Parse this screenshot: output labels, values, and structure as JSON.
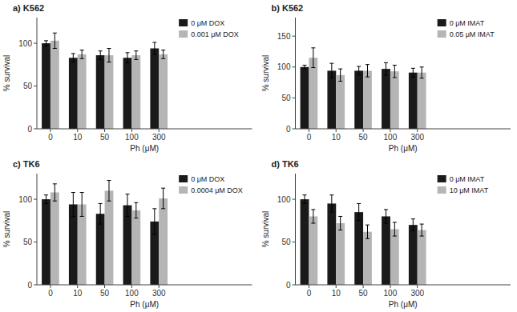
{
  "chart_data": [
    {
      "type": "bar",
      "title": "a) K562",
      "xlabel": "Ph (μM)",
      "ylabel": "% survival",
      "categories": [
        "0",
        "10",
        "50",
        "100",
        "300"
      ],
      "series": [
        {
          "name": "0 μM DOX",
          "color": "#1a1a1a",
          "values": [
            100,
            83,
            86,
            83,
            94
          ],
          "errors": [
            3,
            5,
            5,
            6,
            7
          ]
        },
        {
          "name": "0.001 μM DOX",
          "color": "#b5b5b5",
          "values": [
            103,
            87,
            86,
            86,
            87
          ],
          "errors": [
            9,
            5,
            8,
            5,
            5
          ]
        }
      ],
      "ylim": [
        0,
        130
      ],
      "yticks": [
        0,
        50,
        100
      ],
      "grid": false,
      "legend": "upper right"
    },
    {
      "type": "bar",
      "title": "b) K562",
      "xlabel": "Ph (μM)",
      "ylabel": "% survival",
      "categories": [
        "0",
        "10",
        "50",
        "100",
        "300"
      ],
      "series": [
        {
          "name": "0 μM IMAT",
          "color": "#1a1a1a",
          "values": [
            100,
            94,
            94,
            97,
            91
          ],
          "errors": [
            3,
            12,
            7,
            10,
            7
          ]
        },
        {
          "name": "0.05 μM IMAT",
          "color": "#b5b5b5",
          "values": [
            115,
            87,
            94,
            93,
            91
          ],
          "errors": [
            16,
            10,
            10,
            10,
            9
          ]
        }
      ],
      "ylim": [
        0,
        180
      ],
      "yticks": [
        0,
        50,
        100,
        150
      ],
      "grid": false,
      "legend": "upper right"
    },
    {
      "type": "bar",
      "title": "c) TK6",
      "xlabel": "Ph (μM)",
      "ylabel": "% survival",
      "categories": [
        "0",
        "10",
        "50",
        "100",
        "300"
      ],
      "series": [
        {
          "name": "0 μM DOX",
          "color": "#1a1a1a",
          "values": [
            100,
            94,
            83,
            93,
            74
          ],
          "errors": [
            5,
            14,
            12,
            13,
            15
          ]
        },
        {
          "name": "0.0004 μM DOX",
          "color": "#b5b5b5",
          "values": [
            108,
            94,
            110,
            87,
            101
          ],
          "errors": [
            10,
            14,
            12,
            9,
            12
          ]
        }
      ],
      "ylim": [
        0,
        130
      ],
      "yticks": [
        0,
        50,
        100
      ],
      "grid": false,
      "legend": "upper right"
    },
    {
      "type": "bar",
      "title": "d) TK6",
      "xlabel": "Ph (μM)",
      "ylabel": "% survival",
      "categories": [
        "0",
        "10",
        "50",
        "100",
        "300"
      ],
      "series": [
        {
          "name": "0 μM IMAT",
          "color": "#1a1a1a",
          "values": [
            100,
            95,
            85,
            80,
            70
          ],
          "errors": [
            5,
            10,
            10,
            8,
            7
          ]
        },
        {
          "name": "10 μM IMAT",
          "color": "#b5b5b5",
          "values": [
            80,
            72,
            62,
            65,
            64
          ],
          "errors": [
            8,
            8,
            8,
            8,
            7
          ]
        }
      ],
      "ylim": [
        0,
        130
      ],
      "yticks": [
        0,
        50,
        100
      ],
      "grid": false,
      "legend": "upper right"
    }
  ]
}
